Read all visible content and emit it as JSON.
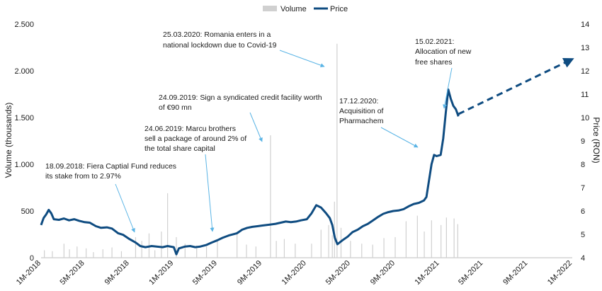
{
  "chart_data": {
    "type": "line",
    "title": "",
    "legend": {
      "position": "top-center",
      "items": [
        {
          "label": "Volume",
          "color": "#d0d0d0",
          "kind": "bar"
        },
        {
          "label": "Price",
          "color": "#0f4c81",
          "kind": "line"
        }
      ]
    },
    "x_axis": {
      "type": "date",
      "range": [
        "2018-01-01",
        "2022-01-01"
      ],
      "tick_labels": [
        "1M-2018",
        "5M-2018",
        "9M-2018",
        "1M-2019",
        "5M-2019",
        "9M-2019",
        "1M-2020",
        "5M-2020",
        "9M-2020",
        "1M-2021",
        "5M-2021",
        "9M-2021",
        "1M-2022"
      ],
      "tick_dates": [
        "2018-01-01",
        "2018-05-01",
        "2018-09-01",
        "2019-01-01",
        "2019-05-01",
        "2019-09-01",
        "2020-01-01",
        "2020-05-01",
        "2020-09-01",
        "2021-01-01",
        "2021-05-01",
        "2021-09-01",
        "2022-01-01"
      ]
    },
    "y_left": {
      "label": "Volume (thousands)",
      "range": [
        0,
        2500
      ],
      "tick_labels": [
        "0",
        "500",
        "1.000",
        "1.500",
        "2.000",
        "2.500"
      ],
      "tick_values": [
        0,
        500,
        1000,
        1500,
        2000,
        2500
      ]
    },
    "y_right": {
      "label": "Price (RON)",
      "range": [
        4,
        14
      ],
      "tick_labels": [
        "4",
        "5",
        "6",
        "7",
        "8",
        "9",
        "10",
        "11",
        "12",
        "13",
        "14"
      ],
      "tick_values": [
        4,
        5,
        6,
        7,
        8,
        9,
        10,
        11,
        12,
        13,
        14
      ]
    },
    "grid": false,
    "series": [
      {
        "name": "Price",
        "axis": "right",
        "color": "#0f4c81",
        "points": [
          [
            "2018-01-01",
            5.4
          ],
          [
            "2018-01-08",
            5.7
          ],
          [
            "2018-01-15",
            5.85
          ],
          [
            "2018-01-22",
            6.05
          ],
          [
            "2018-01-29",
            5.9
          ],
          [
            "2018-02-05",
            5.65
          ],
          [
            "2018-02-19",
            5.62
          ],
          [
            "2018-03-05",
            5.68
          ],
          [
            "2018-03-19",
            5.6
          ],
          [
            "2018-04-02",
            5.65
          ],
          [
            "2018-04-16",
            5.58
          ],
          [
            "2018-05-01",
            5.52
          ],
          [
            "2018-05-15",
            5.5
          ],
          [
            "2018-06-01",
            5.35
          ],
          [
            "2018-06-15",
            5.28
          ],
          [
            "2018-07-01",
            5.3
          ],
          [
            "2018-07-15",
            5.25
          ],
          [
            "2018-08-01",
            5.05
          ],
          [
            "2018-08-15",
            4.98
          ],
          [
            "2018-09-01",
            4.8
          ],
          [
            "2018-09-18",
            4.65
          ],
          [
            "2018-10-01",
            4.5
          ],
          [
            "2018-10-15",
            4.45
          ],
          [
            "2018-11-01",
            4.5
          ],
          [
            "2018-11-15",
            4.48
          ],
          [
            "2018-12-01",
            4.45
          ],
          [
            "2018-12-15",
            4.5
          ],
          [
            "2019-01-01",
            4.45
          ],
          [
            "2019-01-08",
            4.15
          ],
          [
            "2019-01-15",
            4.4
          ],
          [
            "2019-02-01",
            4.48
          ],
          [
            "2019-02-15",
            4.5
          ],
          [
            "2019-03-01",
            4.45
          ],
          [
            "2019-03-15",
            4.48
          ],
          [
            "2019-04-01",
            4.55
          ],
          [
            "2019-04-15",
            4.65
          ],
          [
            "2019-05-01",
            4.75
          ],
          [
            "2019-05-15",
            4.85
          ],
          [
            "2019-06-01",
            4.95
          ],
          [
            "2019-06-24",
            5.05
          ],
          [
            "2019-07-08",
            5.2
          ],
          [
            "2019-07-22",
            5.28
          ],
          [
            "2019-08-05",
            5.32
          ],
          [
            "2019-08-19",
            5.35
          ],
          [
            "2019-09-02",
            5.38
          ],
          [
            "2019-09-24",
            5.42
          ],
          [
            "2019-10-08",
            5.45
          ],
          [
            "2019-10-22",
            5.5
          ],
          [
            "2019-11-05",
            5.55
          ],
          [
            "2019-11-19",
            5.52
          ],
          [
            "2019-12-03",
            5.55
          ],
          [
            "2019-12-17",
            5.6
          ],
          [
            "2020-01-02",
            5.65
          ],
          [
            "2020-01-15",
            5.9
          ],
          [
            "2020-01-28",
            6.25
          ],
          [
            "2020-02-10",
            6.15
          ],
          [
            "2020-02-24",
            5.9
          ],
          [
            "2020-03-05",
            5.7
          ],
          [
            "2020-03-12",
            5.4
          ],
          [
            "2020-03-19",
            4.85
          ],
          [
            "2020-03-26",
            4.58
          ],
          [
            "2020-04-09",
            4.75
          ],
          [
            "2020-04-23",
            4.9
          ],
          [
            "2020-05-07",
            5.1
          ],
          [
            "2020-05-21",
            5.2
          ],
          [
            "2020-06-04",
            5.35
          ],
          [
            "2020-06-18",
            5.45
          ],
          [
            "2020-07-02",
            5.6
          ],
          [
            "2020-07-16",
            5.75
          ],
          [
            "2020-07-30",
            5.88
          ],
          [
            "2020-08-13",
            5.95
          ],
          [
            "2020-08-27",
            6.0
          ],
          [
            "2020-09-10",
            6.02
          ],
          [
            "2020-09-24",
            6.08
          ],
          [
            "2020-10-08",
            6.2
          ],
          [
            "2020-10-22",
            6.3
          ],
          [
            "2020-11-05",
            6.35
          ],
          [
            "2020-11-19",
            6.45
          ],
          [
            "2020-11-26",
            6.6
          ],
          [
            "2020-12-03",
            7.3
          ],
          [
            "2020-12-10",
            8.0
          ],
          [
            "2020-12-17",
            8.4
          ],
          [
            "2020-12-24",
            8.35
          ],
          [
            "2021-01-04",
            8.4
          ],
          [
            "2021-01-11",
            9.1
          ],
          [
            "2021-01-18",
            10.2
          ],
          [
            "2021-01-25",
            11.2
          ],
          [
            "2021-02-01",
            10.8
          ],
          [
            "2021-02-08",
            10.5
          ],
          [
            "2021-02-15",
            10.35
          ],
          [
            "2021-02-22",
            10.05
          ]
        ]
      },
      {
        "name": "",
        "axis": "right",
        "style": "dashed-arrow",
        "color": "#0f4c81",
        "points": [
          [
            "2021-02-22",
            10.15
          ],
          [
            "2022-01-01",
            12.5
          ]
        ]
      },
      {
        "name": "Volume",
        "axis": "left",
        "color": "#d0d0d0",
        "points": [
          [
            "2018-01-10",
            80
          ],
          [
            "2018-02-01",
            70
          ],
          [
            "2018-03-05",
            150
          ],
          [
            "2018-03-20",
            90
          ],
          [
            "2018-04-10",
            120
          ],
          [
            "2018-05-05",
            100
          ],
          [
            "2018-05-25",
            60
          ],
          [
            "2018-06-20",
            90
          ],
          [
            "2018-07-15",
            110
          ],
          [
            "2018-08-10",
            70
          ],
          [
            "2018-09-18",
            220
          ],
          [
            "2018-10-05",
            180
          ],
          [
            "2018-10-25",
            260
          ],
          [
            "2018-11-10",
            80
          ],
          [
            "2018-11-28",
            280
          ],
          [
            "2018-12-15",
            690
          ],
          [
            "2019-01-08",
            220
          ],
          [
            "2019-02-01",
            150
          ],
          [
            "2019-03-05",
            130
          ],
          [
            "2019-04-01",
            120
          ],
          [
            "2019-05-01",
            180
          ],
          [
            "2019-06-24",
            280
          ],
          [
            "2019-07-20",
            140
          ],
          [
            "2019-08-15",
            120
          ],
          [
            "2019-09-24",
            1310
          ],
          [
            "2019-10-10",
            180
          ],
          [
            "2019-11-01",
            200
          ],
          [
            "2019-12-01",
            150
          ],
          [
            "2020-01-15",
            150
          ],
          [
            "2020-02-10",
            300
          ],
          [
            "2020-03-02",
            350
          ],
          [
            "2020-03-12",
            240
          ],
          [
            "2020-03-18",
            600
          ],
          [
            "2020-03-25",
            2290
          ],
          [
            "2020-04-05",
            320
          ],
          [
            "2020-05-01",
            180
          ],
          [
            "2020-06-01",
            150
          ],
          [
            "2020-07-01",
            140
          ],
          [
            "2020-08-01",
            210
          ],
          [
            "2020-09-01",
            220
          ],
          [
            "2020-10-01",
            390
          ],
          [
            "2020-11-01",
            450
          ],
          [
            "2020-11-20",
            280
          ],
          [
            "2020-12-10",
            400
          ],
          [
            "2021-01-05",
            350
          ],
          [
            "2021-01-20",
            430
          ],
          [
            "2021-02-10",
            420
          ],
          [
            "2021-02-20",
            360
          ]
        ]
      }
    ],
    "annotations": [
      {
        "lines": [
          "18.09.2018: Fiera Captial Fund reduces",
          "its stake from to 2.97%"
        ]
      },
      {
        "lines": [
          "24.06.2019: Marcu brothers",
          "sell a package of around 2% of",
          "the total share capital"
        ]
      },
      {
        "lines": [
          "24.09.2019: Sign a syndicated credit facility worth",
          "of €90 mn"
        ]
      },
      {
        "lines": [
          "25.03.2020: Romania enters in a",
          "national lockdown due to Covid-19"
        ]
      },
      {
        "lines": [
          "17.12.2020:",
          "Acquisition of",
          "Pharmachem"
        ]
      },
      {
        "lines": [
          "15.02.2021:",
          "Allocation of new",
          "free shares"
        ]
      }
    ]
  }
}
